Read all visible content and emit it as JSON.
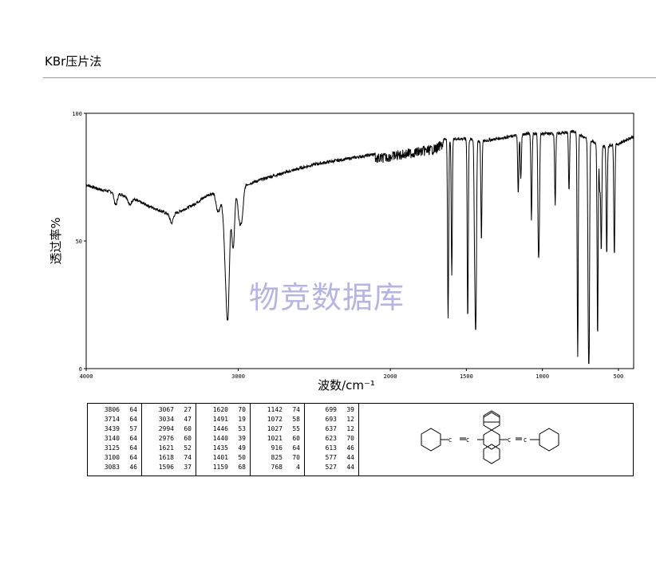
{
  "header": {
    "title": "KBr压片法"
  },
  "watermark": "物竞数据库",
  "chart_data": {
    "type": "line",
    "title": "",
    "xlabel": "波数/cm⁻¹",
    "ylabel": "透过率%",
    "xlim": [
      4000,
      400
    ],
    "ylim": [
      0,
      100
    ],
    "x_ticks": [
      "4000",
      "3000",
      "2000",
      "1500",
      "1000",
      "500"
    ],
    "y_ticks": [
      "0",
      "50",
      "100"
    ],
    "baseline": [
      [
        4000,
        72
      ],
      [
        3900,
        70
      ],
      [
        3806,
        69
      ],
      [
        3714,
        67
      ],
      [
        3600,
        64
      ],
      [
        3439,
        60
      ],
      [
        3300,
        64
      ],
      [
        3200,
        68
      ],
      [
        3150,
        69
      ],
      [
        3000,
        71
      ],
      [
        2800,
        75
      ],
      [
        2500,
        80
      ],
      [
        2200,
        83
      ],
      [
        2000,
        85
      ],
      [
        1900,
        86
      ],
      [
        1800,
        87
      ],
      [
        1700,
        88
      ],
      [
        1650,
        90
      ],
      [
        1500,
        90
      ],
      [
        1400,
        89
      ],
      [
        1300,
        90
      ],
      [
        1200,
        91
      ],
      [
        1100,
        92
      ],
      [
        1000,
        92
      ],
      [
        900,
        92
      ],
      [
        800,
        93
      ],
      [
        700,
        90
      ],
      [
        600,
        87
      ],
      [
        500,
        88
      ],
      [
        400,
        91
      ]
    ],
    "peaks": [
      {
        "x": 3806,
        "y": 64
      },
      {
        "x": 3714,
        "y": 64
      },
      {
        "x": 3439,
        "y": 57
      },
      {
        "x": 3140,
        "y": 64
      },
      {
        "x": 3125,
        "y": 64
      },
      {
        "x": 3100,
        "y": 64
      },
      {
        "x": 3083,
        "y": 46
      },
      {
        "x": 3067,
        "y": 27
      },
      {
        "x": 3034,
        "y": 47
      },
      {
        "x": 2994,
        "y": 60
      },
      {
        "x": 2976,
        "y": 60
      },
      {
        "x": 1621,
        "y": 52
      },
      {
        "x": 1618,
        "y": 74
      },
      {
        "x": 1596,
        "y": 37
      },
      {
        "x": 1620,
        "y": 70
      },
      {
        "x": 1491,
        "y": 19
      },
      {
        "x": 1446,
        "y": 53
      },
      {
        "x": 1440,
        "y": 39
      },
      {
        "x": 1435,
        "y": 49
      },
      {
        "x": 1401,
        "y": 50
      },
      {
        "x": 1159,
        "y": 68
      },
      {
        "x": 1142,
        "y": 74
      },
      {
        "x": 1072,
        "y": 58
      },
      {
        "x": 1027,
        "y": 55
      },
      {
        "x": 1021,
        "y": 60
      },
      {
        "x": 916,
        "y": 64
      },
      {
        "x": 825,
        "y": 70
      },
      {
        "x": 768,
        "y": 4
      },
      {
        "x": 699,
        "y": 39
      },
      {
        "x": 693,
        "y": 12
      },
      {
        "x": 637,
        "y": 12
      },
      {
        "x": 623,
        "y": 70
      },
      {
        "x": 613,
        "y": 46
      },
      {
        "x": 577,
        "y": 44
      },
      {
        "x": 527,
        "y": 44
      }
    ]
  },
  "peak_table": [
    [
      [
        "3806",
        "64"
      ],
      [
        "3714",
        "64"
      ],
      [
        "3439",
        "57"
      ],
      [
        "3140",
        "64"
      ],
      [
        "3125",
        "64"
      ],
      [
        "3100",
        "64"
      ],
      [
        "3083",
        "46"
      ]
    ],
    [
      [
        "3067",
        "27"
      ],
      [
        "3034",
        "47"
      ],
      [
        "2994",
        "60"
      ],
      [
        "2976",
        "60"
      ],
      [
        "1621",
        "52"
      ],
      [
        "1618",
        "74"
      ],
      [
        "1596",
        "37"
      ]
    ],
    [
      [
        "1620",
        "70"
      ],
      [
        "1491",
        "19"
      ],
      [
        "1446",
        "53"
      ],
      [
        "1440",
        "39"
      ],
      [
        "1435",
        "49"
      ],
      [
        "1401",
        "50"
      ],
      [
        "1159",
        "68"
      ]
    ],
    [
      [
        "1142",
        "74"
      ],
      [
        "1072",
        "58"
      ],
      [
        "1027",
        "55"
      ],
      [
        "1021",
        "60"
      ],
      [
        "916",
        "64"
      ],
      [
        "825",
        "70"
      ],
      [
        "768",
        "4"
      ]
    ],
    [
      [
        "699",
        "39"
      ],
      [
        "693",
        "12"
      ],
      [
        "637",
        "12"
      ],
      [
        "623",
        "70"
      ],
      [
        "613",
        "46"
      ],
      [
        "577",
        "44"
      ],
      [
        "527",
        "44"
      ]
    ]
  ],
  "structure": {
    "alkyne_atom_label": "C"
  }
}
